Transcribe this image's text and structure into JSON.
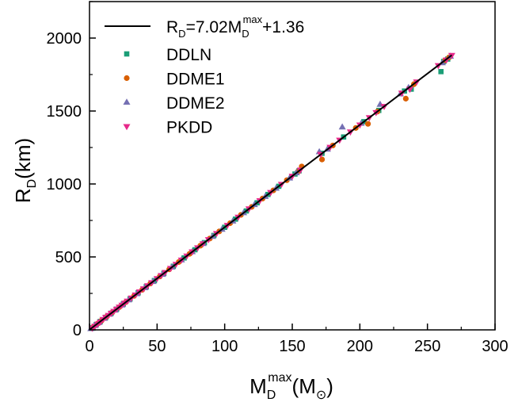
{
  "chart_data": {
    "type": "scatter",
    "xlabel": {
      "base": "M",
      "sub": "D",
      "sup": "max",
      "unit_open": "(M",
      "unit_sym": "⊙",
      "unit_close": ")"
    },
    "ylabel": {
      "base": "R",
      "sub": "D",
      "unit": "(km)"
    },
    "xlim": [
      0,
      300
    ],
    "ylim": [
      0,
      2250
    ],
    "xticks": [
      0,
      50,
      100,
      150,
      200,
      250,
      300
    ],
    "yticks": [
      0,
      500,
      1000,
      1500,
      2000
    ],
    "legend_position": "top-left",
    "fit_line": {
      "label": {
        "a": "R",
        "b": "D",
        "c": "=7.02M",
        "d": "D",
        "e": "max",
        "f": "+1.36"
      },
      "slope": 7.02,
      "intercept": 1.36,
      "x_range": [
        0,
        268
      ],
      "color": "#000000"
    },
    "series": [
      {
        "name": "DDLN",
        "marker": "square",
        "color": "#1b9e77",
        "points": [
          [
            2,
            15
          ],
          [
            5,
            36
          ],
          [
            8,
            58
          ],
          [
            12,
            86
          ],
          [
            16,
            114
          ],
          [
            20,
            142
          ],
          [
            25,
            177
          ],
          [
            30,
            212
          ],
          [
            36,
            254
          ],
          [
            42,
            296
          ],
          [
            48,
            338
          ],
          [
            55,
            387
          ],
          [
            62,
            436
          ],
          [
            70,
            493
          ],
          [
            78,
            549
          ],
          [
            85,
            598
          ],
          [
            92,
            647
          ],
          [
            100,
            703
          ],
          [
            108,
            759
          ],
          [
            116,
            815
          ],
          [
            124,
            871
          ],
          [
            132,
            928
          ],
          [
            140,
            984
          ],
          [
            152,
            1068
          ],
          [
            155,
            1090
          ],
          [
            172,
            1210
          ],
          [
            188,
            1322
          ],
          [
            203,
            1427
          ],
          [
            214,
            1504
          ],
          [
            233,
            1637
          ],
          [
            238,
            1650
          ],
          [
            260,
            1770
          ],
          [
            262,
            1840
          ],
          [
            265,
            1856
          ]
        ]
      },
      {
        "name": "DDME1",
        "marker": "circle",
        "color": "#d95f02",
        "points": [
          [
            3,
            22
          ],
          [
            6,
            43
          ],
          [
            9,
            64
          ],
          [
            13,
            93
          ],
          [
            17,
            121
          ],
          [
            22,
            156
          ],
          [
            27,
            191
          ],
          [
            33,
            233
          ],
          [
            39,
            275
          ],
          [
            45,
            318
          ],
          [
            52,
            366
          ],
          [
            59,
            415
          ],
          [
            66,
            465
          ],
          [
            74,
            521
          ],
          [
            82,
            577
          ],
          [
            89,
            626
          ],
          [
            96,
            675
          ],
          [
            104,
            731
          ],
          [
            112,
            788
          ],
          [
            120,
            843
          ],
          [
            128,
            900
          ],
          [
            136,
            956
          ],
          [
            146,
            1026
          ],
          [
            154,
            1083
          ],
          [
            157,
            1120
          ],
          [
            172,
            1168
          ],
          [
            180,
            1264
          ],
          [
            197,
            1384
          ],
          [
            206,
            1412
          ],
          [
            213,
            1496
          ],
          [
            234,
            1585
          ],
          [
            240,
            1684
          ],
          [
            263,
            1848
          ],
          [
            266,
            1868
          ]
        ]
      },
      {
        "name": "DDME2",
        "marker": "triangle-up",
        "color": "#7570b3",
        "points": [
          [
            1,
            8
          ],
          [
            4,
            29
          ],
          [
            7,
            50
          ],
          [
            11,
            79
          ],
          [
            15,
            107
          ],
          [
            19,
            135
          ],
          [
            24,
            170
          ],
          [
            29,
            205
          ],
          [
            35,
            247
          ],
          [
            41,
            289
          ],
          [
            47,
            331
          ],
          [
            54,
            380
          ],
          [
            61,
            430
          ],
          [
            68,
            479
          ],
          [
            76,
            535
          ],
          [
            84,
            591
          ],
          [
            91,
            640
          ],
          [
            98,
            689
          ],
          [
            106,
            745
          ],
          [
            114,
            802
          ],
          [
            122,
            858
          ],
          [
            130,
            914
          ],
          [
            138,
            970
          ],
          [
            148,
            1040
          ],
          [
            153,
            1076
          ],
          [
            170,
            1220
          ],
          [
            176,
            1238
          ],
          [
            187,
            1390
          ],
          [
            201,
            1415
          ],
          [
            215,
            1545
          ],
          [
            230,
            1617
          ],
          [
            236,
            1660
          ],
          [
            261,
            1830
          ],
          [
            267,
            1875
          ]
        ]
      },
      {
        "name": "PKDD",
        "marker": "triangle-down",
        "color": "#e7298a",
        "points": [
          [
            2,
            12
          ],
          [
            4,
            26
          ],
          [
            6,
            40
          ],
          [
            8,
            54
          ],
          [
            10,
            72
          ],
          [
            12,
            86
          ],
          [
            14,
            100
          ],
          [
            16,
            114
          ],
          [
            18,
            128
          ],
          [
            20,
            142
          ],
          [
            22,
            156
          ],
          [
            24,
            170
          ],
          [
            26,
            184
          ],
          [
            28,
            198
          ],
          [
            31,
            219
          ],
          [
            34,
            240
          ],
          [
            37,
            261
          ],
          [
            40,
            282
          ],
          [
            43,
            303
          ],
          [
            46,
            324
          ],
          [
            50,
            352
          ],
          [
            53,
            373
          ],
          [
            56,
            394
          ],
          [
            60,
            422
          ],
          [
            64,
            450
          ],
          [
            68,
            479
          ],
          [
            72,
            507
          ],
          [
            76,
            535
          ],
          [
            80,
            563
          ],
          [
            84,
            591
          ],
          [
            88,
            619
          ],
          [
            94,
            661
          ],
          [
            102,
            717
          ],
          [
            110,
            773
          ],
          [
            118,
            830
          ],
          [
            126,
            886
          ],
          [
            134,
            942
          ],
          [
            142,
            998
          ],
          [
            150,
            1054
          ],
          [
            156,
            1096
          ],
          [
            171,
            1203
          ],
          [
            178,
            1252
          ],
          [
            185,
            1301
          ],
          [
            193,
            1357
          ],
          [
            200,
            1405
          ],
          [
            207,
            1455
          ],
          [
            212,
            1490
          ],
          [
            218,
            1532
          ],
          [
            231,
            1623
          ],
          [
            237,
            1650
          ],
          [
            242,
            1700
          ],
          [
            258,
            1812
          ],
          [
            264,
            1850
          ],
          [
            268,
            1882
          ]
        ]
      }
    ]
  }
}
